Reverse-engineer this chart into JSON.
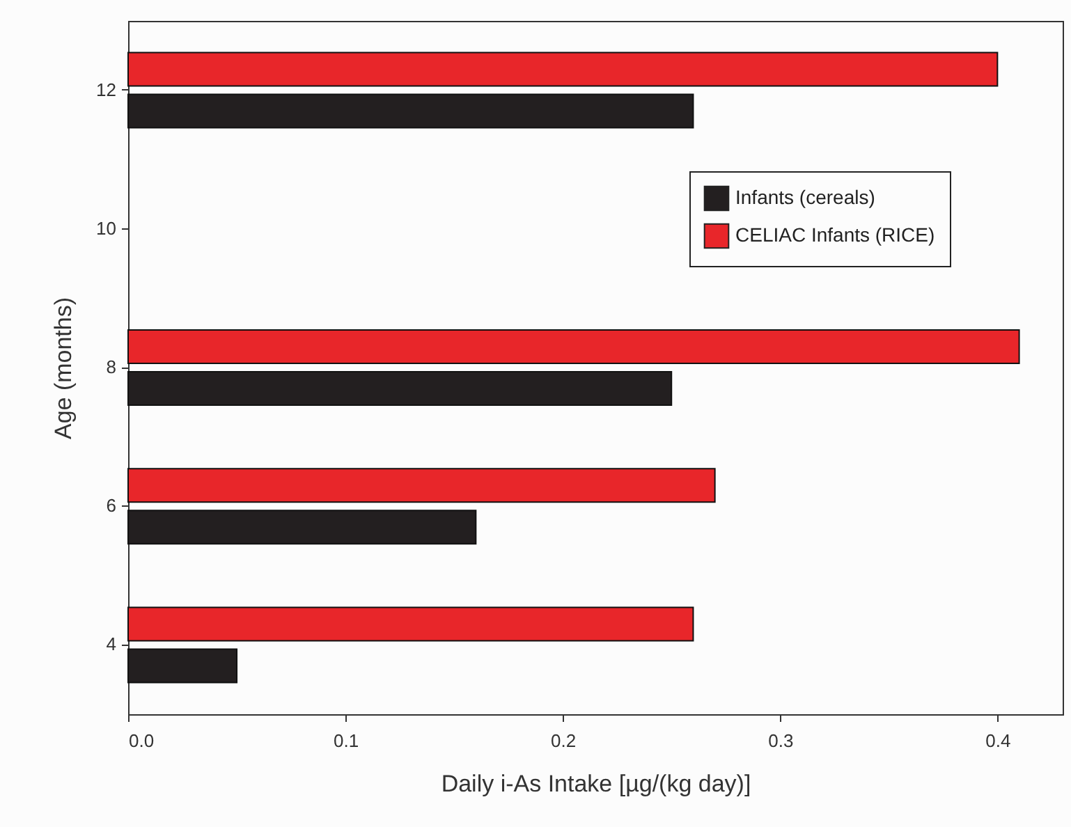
{
  "chart_data": {
    "type": "bar",
    "orientation": "horizontal",
    "xlabel": "Daily i-As Intake [µg/(kg day)]",
    "ylabel": "Age (months)",
    "categories": [
      "12",
      "10",
      "8",
      "6",
      "4"
    ],
    "xlim": [
      0,
      0.43
    ],
    "xticks": [
      {
        "value": 0,
        "label": "0.0"
      },
      0.1,
      0.2,
      0.3,
      0.4
    ],
    "series": [
      {
        "name": "Infants (cereals)",
        "color": "#231f20",
        "values": [
          0.26,
          null,
          0.25,
          0.16,
          0.05
        ]
      },
      {
        "name": "CELIAC Infants (RICE)",
        "color": "#e8262a",
        "values": [
          0.4,
          null,
          0.41,
          0.27,
          0.26
        ]
      }
    ],
    "grid": false,
    "legend": "top right"
  }
}
